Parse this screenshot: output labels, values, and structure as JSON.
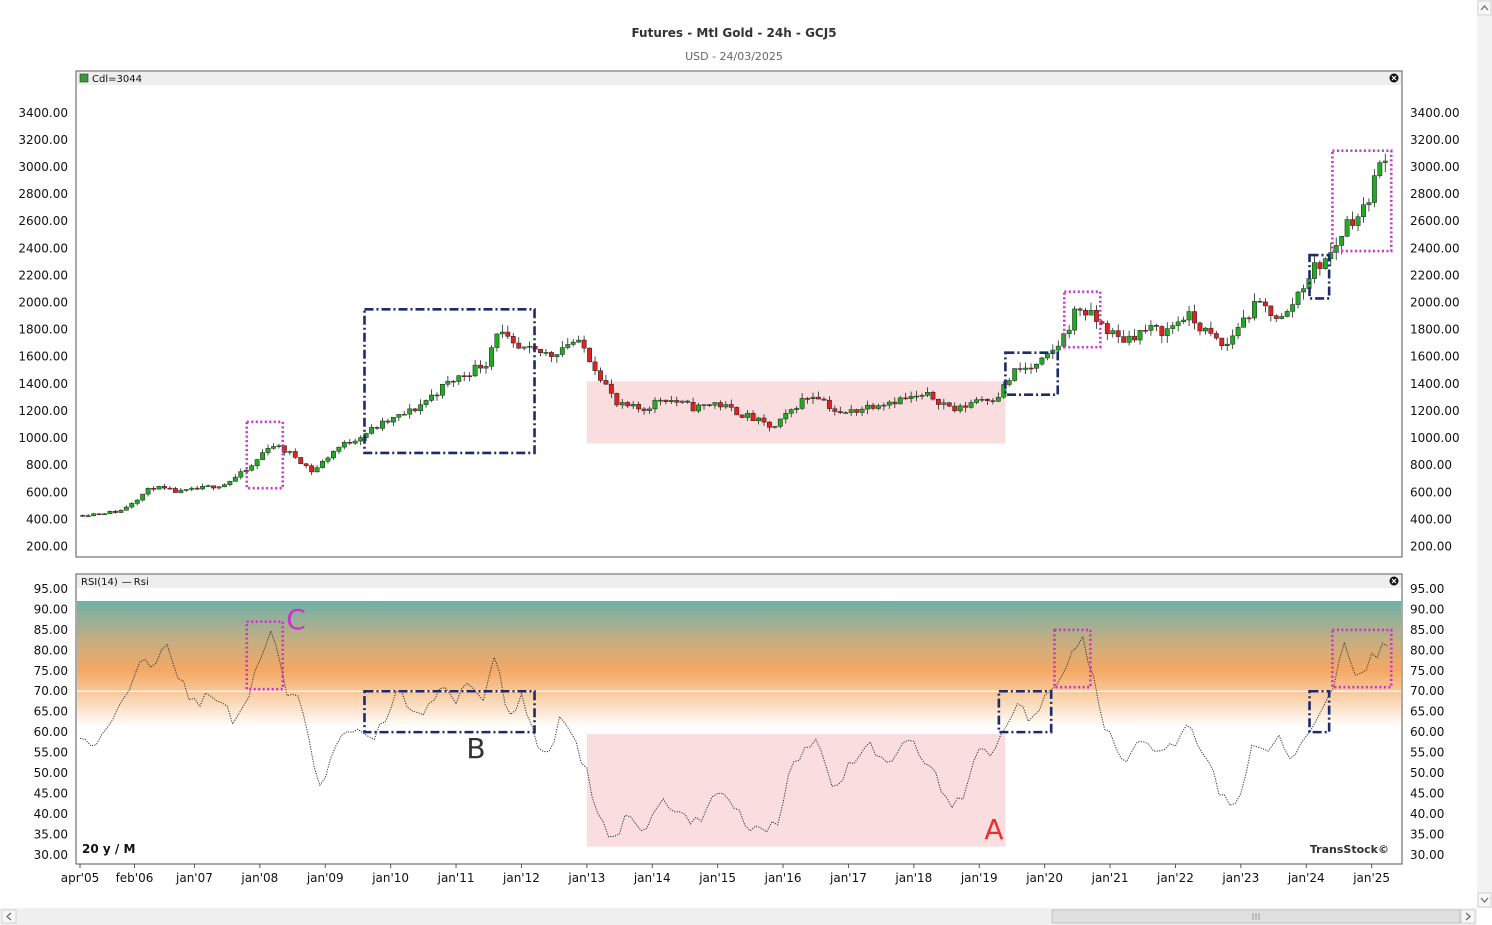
{
  "header": {
    "title": "Futures - Mtl Gold - 24h - GCJ5",
    "subtitle": "USD - 24/03/2025"
  },
  "price_pane": {
    "legend": "Cdl=3044"
  },
  "rsi_pane": {
    "legend_prefix": "RSI(14)",
    "legend_series": "Rsi",
    "period_label": "20 y / M",
    "brand": "TransStock©"
  },
  "annotations": {
    "a": "A",
    "b": "B",
    "c": "C"
  },
  "colors": {
    "up": "#22aa22",
    "down": "#dd2222",
    "navy_box": "#1c2a6e",
    "magenta_box": "#cc33cc",
    "zone_pink": "#f9d7d9",
    "label_a": "#e83030",
    "label_b": "#333333",
    "label_c": "#cc33cc"
  },
  "chart_data": [
    {
      "type": "candlestick",
      "name": "Futures - Mtl Gold - 24h - GCJ5",
      "interval": "monthly",
      "ylim": [
        130,
        3590
      ],
      "yticks": [
        200,
        400,
        600,
        800,
        1000,
        1200,
        1400,
        1600,
        1800,
        2000,
        2200,
        2400,
        2600,
        2800,
        3000,
        3200,
        3400
      ],
      "x_ticks": [
        "apr'05",
        "feb'06",
        "jan'07",
        "jan'08",
        "jan'09",
        "jan'10",
        "jan'11",
        "jan'12",
        "jan'13",
        "jan'14",
        "jan'15",
        "jan'16",
        "jan'17",
        "jan'18",
        "jan'19",
        "jan'20",
        "jan'21",
        "jan'22",
        "jan'23",
        "jan'24",
        "jan'25"
      ],
      "x_tick_years": [
        2005.25,
        2006.083,
        2007.0,
        2008.0,
        2009.0,
        2010.0,
        2011.0,
        2012.0,
        2013.0,
        2014.0,
        2015.0,
        2016.0,
        2017.0,
        2018.0,
        2019.0,
        2020.0,
        2021.0,
        2022.0,
        2023.0,
        2024.0,
        2025.0
      ],
      "price_anchors": [
        [
          2005.25,
          430
        ],
        [
          2005.9,
          460
        ],
        [
          2006.4,
          640
        ],
        [
          2006.8,
          600
        ],
        [
          2007.5,
          660
        ],
        [
          2007.9,
          780
        ],
        [
          2008.2,
          960
        ],
        [
          2008.6,
          860
        ],
        [
          2008.85,
          750
        ],
        [
          2009.2,
          920
        ],
        [
          2009.9,
          1100
        ],
        [
          2010.4,
          1210
        ],
        [
          2010.9,
          1400
        ],
        [
          2011.5,
          1560
        ],
        [
          2011.67,
          1800
        ],
        [
          2011.95,
          1650
        ],
        [
          2012.5,
          1620
        ],
        [
          2012.8,
          1720
        ],
        [
          2013.0,
          1660
        ],
        [
          2013.3,
          1420
        ],
        [
          2013.5,
          1240
        ],
        [
          2013.9,
          1210
        ],
        [
          2014.2,
          1300
        ],
        [
          2014.7,
          1220
        ],
        [
          2015.0,
          1260
        ],
        [
          2015.4,
          1180
        ],
        [
          2015.9,
          1070
        ],
        [
          2016.3,
          1270
        ],
        [
          2016.55,
          1330
        ],
        [
          2016.9,
          1170
        ],
        [
          2017.5,
          1260
        ],
        [
          2017.9,
          1290
        ],
        [
          2018.3,
          1310
        ],
        [
          2018.7,
          1200
        ],
        [
          2019.0,
          1290
        ],
        [
          2019.3,
          1300
        ],
        [
          2019.6,
          1500
        ],
        [
          2019.9,
          1520
        ],
        [
          2020.1,
          1600
        ],
        [
          2020.3,
          1720
        ],
        [
          2020.55,
          1970
        ],
        [
          2020.8,
          1880
        ],
        [
          2021.2,
          1720
        ],
        [
          2021.6,
          1800
        ],
        [
          2021.9,
          1790
        ],
        [
          2022.2,
          1910
        ],
        [
          2022.8,
          1660
        ],
        [
          2023.0,
          1830
        ],
        [
          2023.3,
          1990
        ],
        [
          2023.7,
          1870
        ],
        [
          2023.9,
          2060
        ],
        [
          2024.15,
          2250
        ],
        [
          2024.4,
          2340
        ],
        [
          2024.7,
          2620
        ],
        [
          2024.9,
          2650
        ],
        [
          2025.0,
          2800
        ],
        [
          2025.2,
          3044
        ]
      ],
      "last_close": 3044
    },
    {
      "type": "line",
      "name": "Rsi",
      "indicator": "RSI(14)",
      "ylim": [
        28,
        95
      ],
      "yticks": [
        30,
        35,
        40,
        45,
        50,
        55,
        60,
        65,
        70,
        75,
        80,
        85,
        90,
        95
      ],
      "levels": [
        60,
        70,
        90
      ],
      "rsi_anchors": [
        [
          2005.25,
          60
        ],
        [
          2005.4,
          55
        ],
        [
          2005.6,
          60
        ],
        [
          2005.9,
          67
        ],
        [
          2006.2,
          80
        ],
        [
          2006.4,
          76
        ],
        [
          2006.55,
          83
        ],
        [
          2006.8,
          72
        ],
        [
          2007.0,
          67
        ],
        [
          2007.3,
          69
        ],
        [
          2007.6,
          63
        ],
        [
          2007.8,
          68
        ],
        [
          2007.95,
          76
        ],
        [
          2008.2,
          86
        ],
        [
          2008.4,
          68
        ],
        [
          2008.6,
          70
        ],
        [
          2008.75,
          57
        ],
        [
          2008.9,
          45
        ],
        [
          2009.1,
          55
        ],
        [
          2009.4,
          61
        ],
        [
          2009.7,
          57
        ],
        [
          2009.9,
          63
        ],
        [
          2010.1,
          71
        ],
        [
          2010.4,
          63
        ],
        [
          2010.8,
          71
        ],
        [
          2011.0,
          68
        ],
        [
          2011.2,
          74
        ],
        [
          2011.4,
          67
        ],
        [
          2011.6,
          80
        ],
        [
          2011.8,
          64
        ],
        [
          2012.0,
          69
        ],
        [
          2012.2,
          58
        ],
        [
          2012.4,
          55
        ],
        [
          2012.6,
          63
        ],
        [
          2012.8,
          58
        ],
        [
          2013.0,
          50
        ],
        [
          2013.2,
          38
        ],
        [
          2013.4,
          33
        ],
        [
          2013.6,
          40
        ],
        [
          2013.9,
          36
        ],
        [
          2014.1,
          43
        ],
        [
          2014.4,
          40
        ],
        [
          2014.7,
          38
        ],
        [
          2015.0,
          46
        ],
        [
          2015.3,
          40
        ],
        [
          2015.6,
          36
        ],
        [
          2015.9,
          37
        ],
        [
          2016.1,
          50
        ],
        [
          2016.4,
          57
        ],
        [
          2016.5,
          59
        ],
        [
          2016.8,
          46
        ],
        [
          2017.0,
          52
        ],
        [
          2017.3,
          57
        ],
        [
          2017.6,
          53
        ],
        [
          2017.95,
          58
        ],
        [
          2018.3,
          50
        ],
        [
          2018.6,
          42
        ],
        [
          2018.8,
          45
        ],
        [
          2019.0,
          57
        ],
        [
          2019.2,
          55
        ],
        [
          2019.4,
          60
        ],
        [
          2019.6,
          67
        ],
        [
          2019.8,
          63
        ],
        [
          2020.1,
          70
        ],
        [
          2020.3,
          76
        ],
        [
          2020.55,
          84
        ],
        [
          2020.75,
          73
        ],
        [
          2020.9,
          62
        ],
        [
          2021.2,
          52
        ],
        [
          2021.5,
          58
        ],
        [
          2021.8,
          54
        ],
        [
          2022.0,
          57
        ],
        [
          2022.2,
          62
        ],
        [
          2022.4,
          55
        ],
        [
          2022.7,
          45
        ],
        [
          2022.9,
          41
        ],
        [
          2023.0,
          46
        ],
        [
          2023.2,
          58
        ],
        [
          2023.4,
          55
        ],
        [
          2023.6,
          59
        ],
        [
          2023.8,
          52
        ],
        [
          2024.0,
          60
        ],
        [
          2024.2,
          63
        ],
        [
          2024.4,
          71
        ],
        [
          2024.6,
          82
        ],
        [
          2024.8,
          73
        ],
        [
          2025.0,
          78
        ],
        [
          2025.2,
          81
        ]
      ]
    }
  ]
}
